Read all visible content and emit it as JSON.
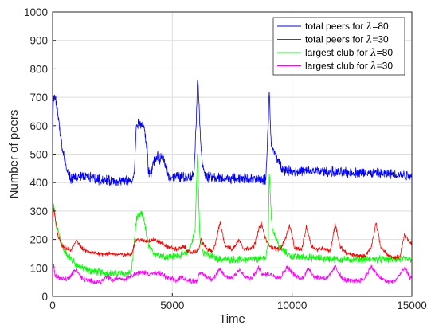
{
  "chart_data": {
    "type": "line",
    "title": "",
    "xlabel": "Time",
    "ylabel": "Number of peers",
    "xlim": [
      0,
      15000
    ],
    "ylim": [
      0,
      1000
    ],
    "xticks": [
      0,
      5000,
      10000,
      15000
    ],
    "yticks": [
      0,
      100,
      200,
      300,
      400,
      500,
      600,
      700,
      800,
      900,
      1000
    ],
    "grid": true,
    "legend_position": "top-right",
    "series": [
      {
        "name_prefix": "total peers for ",
        "name_symbol": "λ",
        "name_suffix": "=80",
        "color": "#0000ff",
        "noise": 14,
        "points": [
          [
            0,
            480
          ],
          [
            30,
            700
          ],
          [
            120,
            700
          ],
          [
            250,
            620
          ],
          [
            400,
            520
          ],
          [
            600,
            440
          ],
          [
            800,
            410
          ],
          [
            1000,
            420
          ],
          [
            1500,
            420
          ],
          [
            2000,
            410
          ],
          [
            2500,
            405
          ],
          [
            3000,
            405
          ],
          [
            3300,
            405
          ],
          [
            3400,
            420
          ],
          [
            3500,
            600
          ],
          [
            3600,
            610
          ],
          [
            3800,
            600
          ],
          [
            3950,
            520
          ],
          [
            4000,
            440
          ],
          [
            4100,
            430
          ],
          [
            4200,
            470
          ],
          [
            4300,
            480
          ],
          [
            4400,
            490
          ],
          [
            4500,
            480
          ],
          [
            4600,
            490
          ],
          [
            4700,
            470
          ],
          [
            4800,
            440
          ],
          [
            4850,
            420
          ],
          [
            5000,
            420
          ],
          [
            5500,
            420
          ],
          [
            5800,
            420
          ],
          [
            5900,
            430
          ],
          [
            6000,
            620
          ],
          [
            6050,
            770
          ],
          [
            6100,
            700
          ],
          [
            6200,
            520
          ],
          [
            6300,
            440
          ],
          [
            6400,
            420
          ],
          [
            7000,
            415
          ],
          [
            8000,
            415
          ],
          [
            8500,
            410
          ],
          [
            8900,
            410
          ],
          [
            9000,
            600
          ],
          [
            9050,
            740
          ],
          [
            9100,
            580
          ],
          [
            9150,
            520
          ],
          [
            9300,
            500
          ],
          [
            9400,
            480
          ],
          [
            9500,
            460
          ],
          [
            9700,
            445
          ],
          [
            10000,
            440
          ],
          [
            11000,
            440
          ],
          [
            12000,
            435
          ],
          [
            13000,
            435
          ],
          [
            14000,
            430
          ],
          [
            15000,
            425
          ]
        ]
      },
      {
        "name_prefix": "total peers for ",
        "name_symbol": "λ",
        "name_suffix": "=30",
        "color": "#ff0000",
        "noise": 6,
        "points": [
          [
            0,
            250
          ],
          [
            50,
            310
          ],
          [
            200,
            220
          ],
          [
            400,
            175
          ],
          [
            800,
            160
          ],
          [
            1000,
            200
          ],
          [
            1200,
            170
          ],
          [
            1500,
            155
          ],
          [
            2000,
            150
          ],
          [
            2500,
            150
          ],
          [
            3000,
            145
          ],
          [
            3300,
            150
          ],
          [
            3400,
            180
          ],
          [
            3500,
            200
          ],
          [
            3800,
            195
          ],
          [
            4000,
            195
          ],
          [
            4200,
            200
          ],
          [
            4500,
            190
          ],
          [
            4800,
            175
          ],
          [
            5200,
            165
          ],
          [
            5500,
            175
          ],
          [
            5700,
            155
          ],
          [
            5900,
            155
          ],
          [
            6000,
            160
          ],
          [
            6100,
            165
          ],
          [
            6200,
            200
          ],
          [
            6400,
            170
          ],
          [
            6700,
            155
          ],
          [
            7000,
            260
          ],
          [
            7200,
            180
          ],
          [
            7500,
            165
          ],
          [
            7800,
            200
          ],
          [
            8000,
            165
          ],
          [
            8400,
            175
          ],
          [
            8700,
            260
          ],
          [
            8900,
            200
          ],
          [
            9000,
            185
          ],
          [
            9200,
            170
          ],
          [
            9500,
            165
          ],
          [
            9700,
            200
          ],
          [
            9900,
            250
          ],
          [
            10100,
            170
          ],
          [
            10400,
            165
          ],
          [
            10600,
            245
          ],
          [
            10800,
            180
          ],
          [
            11000,
            165
          ],
          [
            11300,
            170
          ],
          [
            11600,
            160
          ],
          [
            11800,
            255
          ],
          [
            12000,
            175
          ],
          [
            12300,
            150
          ],
          [
            12600,
            145
          ],
          [
            13000,
            140
          ],
          [
            13300,
            170
          ],
          [
            13500,
            260
          ],
          [
            13700,
            175
          ],
          [
            14000,
            145
          ],
          [
            14200,
            135
          ],
          [
            14500,
            140
          ],
          [
            14700,
            220
          ],
          [
            14900,
            190
          ],
          [
            15000,
            185
          ]
        ]
      },
      {
        "name_prefix": "largest club for ",
        "name_symbol": "λ",
        "name_suffix": "=80",
        "color": "#00ff00",
        "noise": 10,
        "points": [
          [
            0,
            260
          ],
          [
            50,
            320
          ],
          [
            150,
            250
          ],
          [
            300,
            210
          ],
          [
            500,
            155
          ],
          [
            800,
            130
          ],
          [
            1000,
            110
          ],
          [
            1500,
            90
          ],
          [
            2000,
            85
          ],
          [
            2500,
            80
          ],
          [
            3000,
            80
          ],
          [
            3300,
            85
          ],
          [
            3400,
            190
          ],
          [
            3500,
            270
          ],
          [
            3700,
            290
          ],
          [
            3800,
            280
          ],
          [
            3950,
            200
          ],
          [
            4100,
            160
          ],
          [
            4300,
            150
          ],
          [
            4500,
            145
          ],
          [
            4800,
            140
          ],
          [
            5000,
            140
          ],
          [
            5300,
            145
          ],
          [
            5600,
            150
          ],
          [
            5800,
            185
          ],
          [
            5950,
            230
          ],
          [
            6050,
            500
          ],
          [
            6150,
            200
          ],
          [
            6300,
            155
          ],
          [
            6600,
            140
          ],
          [
            7000,
            130
          ],
          [
            7500,
            130
          ],
          [
            8000,
            130
          ],
          [
            8500,
            130
          ],
          [
            8900,
            135
          ],
          [
            9000,
            190
          ],
          [
            9050,
            440
          ],
          [
            9150,
            250
          ],
          [
            9300,
            210
          ],
          [
            9500,
            170
          ],
          [
            9800,
            150
          ],
          [
            10000,
            140
          ],
          [
            11000,
            135
          ],
          [
            12000,
            130
          ],
          [
            13000,
            130
          ],
          [
            14000,
            130
          ],
          [
            15000,
            130
          ]
        ]
      },
      {
        "name_prefix": "largest club for ",
        "name_symbol": "λ",
        "name_suffix": "=30",
        "color": "#ff00ff",
        "noise": 7,
        "points": [
          [
            0,
            80
          ],
          [
            50,
            110
          ],
          [
            100,
            75
          ],
          [
            300,
            65
          ],
          [
            600,
            60
          ],
          [
            1000,
            95
          ],
          [
            1200,
            65
          ],
          [
            1500,
            55
          ],
          [
            2000,
            50
          ],
          [
            2300,
            70
          ],
          [
            2500,
            55
          ],
          [
            2800,
            65
          ],
          [
            3000,
            60
          ],
          [
            3300,
            75
          ],
          [
            3500,
            80
          ],
          [
            3800,
            85
          ],
          [
            4000,
            80
          ],
          [
            4300,
            80
          ],
          [
            4500,
            80
          ],
          [
            4800,
            65
          ],
          [
            5200,
            55
          ],
          [
            5400,
            70
          ],
          [
            5600,
            55
          ],
          [
            6000,
            55
          ],
          [
            6200,
            85
          ],
          [
            6400,
            70
          ],
          [
            6700,
            60
          ],
          [
            7000,
            95
          ],
          [
            7200,
            70
          ],
          [
            7500,
            65
          ],
          [
            7800,
            95
          ],
          [
            8000,
            70
          ],
          [
            8300,
            60
          ],
          [
            8600,
            100
          ],
          [
            8800,
            75
          ],
          [
            9000,
            80
          ],
          [
            9200,
            75
          ],
          [
            9500,
            65
          ],
          [
            9800,
            105
          ],
          [
            10100,
            75
          ],
          [
            10400,
            60
          ],
          [
            10700,
            100
          ],
          [
            10900,
            70
          ],
          [
            11200,
            65
          ],
          [
            11500,
            65
          ],
          [
            11800,
            105
          ],
          [
            12100,
            60
          ],
          [
            12400,
            55
          ],
          [
            12700,
            55
          ],
          [
            13000,
            60
          ],
          [
            13300,
            105
          ],
          [
            13600,
            70
          ],
          [
            14000,
            50
          ],
          [
            14300,
            55
          ],
          [
            14700,
            100
          ],
          [
            14900,
            70
          ],
          [
            15000,
            65
          ]
        ]
      }
    ]
  }
}
